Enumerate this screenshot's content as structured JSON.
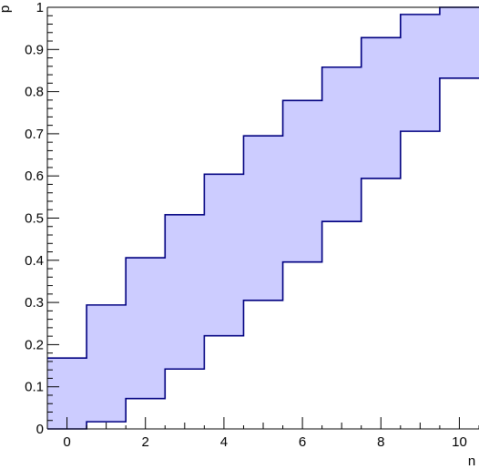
{
  "chart_data": {
    "type": "area",
    "title": "",
    "xlabel": "n",
    "ylabel": "p",
    "xlim": [
      -0.5,
      10.5
    ],
    "ylim": [
      0,
      1
    ],
    "grid": false,
    "x_ticks": [
      0,
      2,
      4,
      6,
      8,
      10
    ],
    "y_ticks": [
      0,
      0.1,
      0.2,
      0.3,
      0.4,
      0.5,
      0.6,
      0.7,
      0.8,
      0.9,
      1
    ],
    "y_tick_labels": [
      "0",
      "0.1",
      "0.2",
      "0.3",
      "0.4",
      "0.5",
      "0.6",
      "0.7",
      "0.8",
      "0.9",
      "1"
    ],
    "band": {
      "n": [
        0,
        1,
        2,
        3,
        4,
        5,
        6,
        7,
        8,
        9,
        10
      ],
      "upper": [
        0.168,
        0.294,
        0.406,
        0.508,
        0.604,
        0.695,
        0.779,
        0.858,
        0.928,
        0.983,
        1.0
      ],
      "lower": [
        0.0,
        0.017,
        0.072,
        0.142,
        0.221,
        0.305,
        0.396,
        0.492,
        0.594,
        0.706,
        0.832
      ],
      "fill_color": "#ccccff",
      "line_color": "#000080"
    }
  }
}
